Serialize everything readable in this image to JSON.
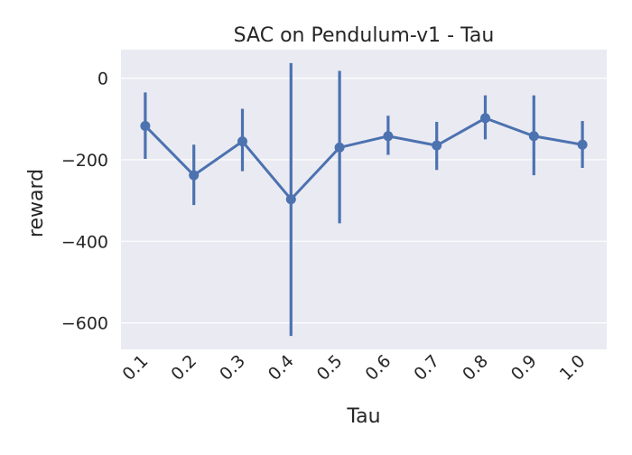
{
  "chart_data": {
    "type": "line",
    "title": "SAC on Pendulum-v1 - Tau",
    "xlabel": "Tau",
    "ylabel": "reward",
    "categories": [
      "0.1",
      "0.2",
      "0.3",
      "0.4",
      "0.5",
      "0.6",
      "0.7",
      "0.8",
      "0.9",
      "1.0"
    ],
    "series": [
      {
        "values": [
          -117,
          -238,
          -155,
          -297,
          -170,
          -142,
          -165,
          -98,
          -142,
          -163
        ],
        "error_low": [
          -198,
          -311,
          -228,
          -632,
          -356,
          -188,
          -225,
          -150,
          -238,
          -220
        ],
        "error_high": [
          -35,
          -163,
          -75,
          37,
          18,
          -92,
          -107,
          -42,
          -42,
          -105
        ]
      }
    ],
    "yticks": [
      0,
      -200,
      -400,
      -600
    ],
    "ytick_labels": [
      "0",
      "−200",
      "−400",
      "−600"
    ],
    "ylim": [
      -665,
      70
    ],
    "grid": true,
    "colors": {
      "series": "#4c72b0",
      "background": "#eaeaf2",
      "grid": "#ffffff"
    }
  }
}
